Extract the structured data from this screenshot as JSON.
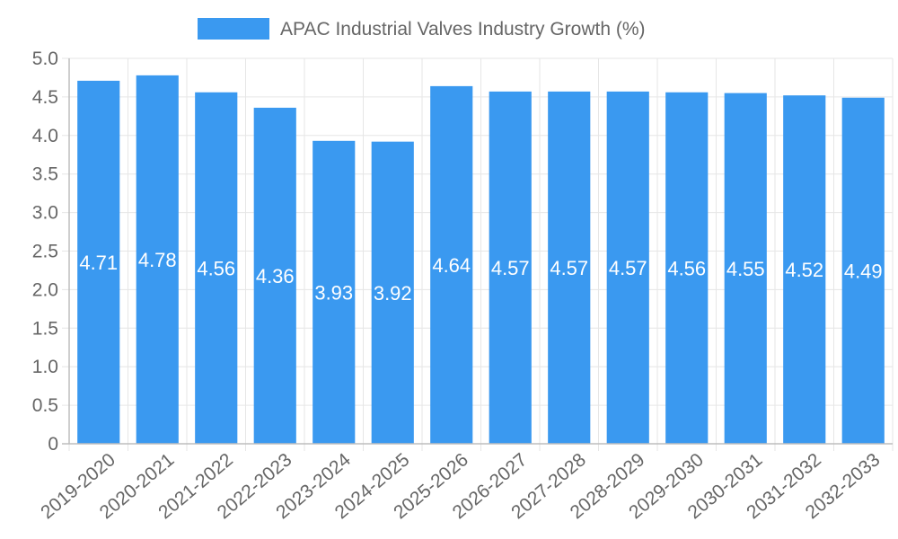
{
  "chart_data": {
    "type": "bar",
    "title": "",
    "legend": {
      "label": "APAC Industrial Valves Industry Growth (%)",
      "position": "top-center"
    },
    "categories": [
      "2019-2020",
      "2020-2021",
      "2021-2022",
      "2022-2023",
      "2023-2024",
      "2024-2025",
      "2025-2026",
      "2026-2027",
      "2027-2028",
      "2028-2029",
      "2029-2030",
      "2030-2031",
      "2031-2032",
      "2032-2033"
    ],
    "values": [
      4.71,
      4.78,
      4.56,
      4.36,
      3.93,
      3.92,
      4.64,
      4.57,
      4.57,
      4.57,
      4.56,
      4.55,
      4.52,
      4.49
    ],
    "value_labels": [
      "4.71",
      "4.78",
      "4.56",
      "4.36",
      "3.93",
      "3.92",
      "4.64",
      "4.57",
      "4.57",
      "4.57",
      "4.56",
      "4.55",
      "4.52",
      "4.49"
    ],
    "y_ticks": [
      "0",
      "0.5",
      "1.0",
      "1.5",
      "2.0",
      "2.5",
      "3.0",
      "3.5",
      "4.0",
      "4.5",
      "5.0"
    ],
    "ylim": [
      0,
      5
    ],
    "xlabel": "",
    "ylabel": "",
    "grid": true,
    "colors": {
      "bar": "#3a99f0",
      "grid": "#e6e6e6",
      "axis": "#bdbdbd",
      "text": "#666666"
    }
  }
}
